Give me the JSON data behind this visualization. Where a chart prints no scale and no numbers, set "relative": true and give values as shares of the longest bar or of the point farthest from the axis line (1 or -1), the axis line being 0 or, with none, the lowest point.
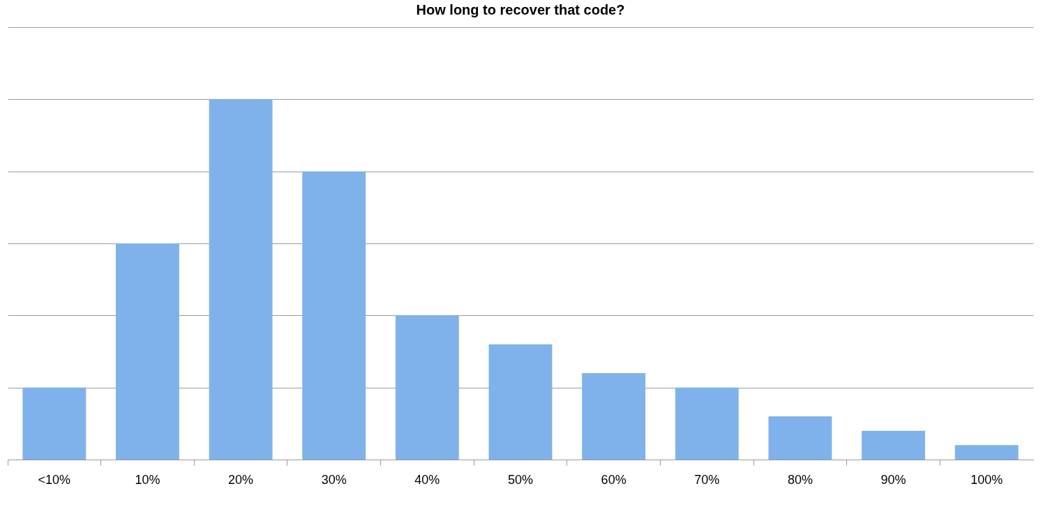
{
  "chart_data": {
    "type": "bar",
    "title": "How long to recover that code?",
    "relative": true,
    "grid": "y",
    "color": "#7fb2ea",
    "categories": [
      "<10%",
      "10%",
      "20%",
      "30%",
      "40%",
      "50%",
      "60%",
      "70%",
      "80%",
      "90%",
      "100%"
    ],
    "values": [
      0.2,
      0.6,
      1,
      0.8,
      0.4,
      0.32,
      0.24,
      0.2,
      0.12,
      0.08,
      0.04
    ]
  }
}
